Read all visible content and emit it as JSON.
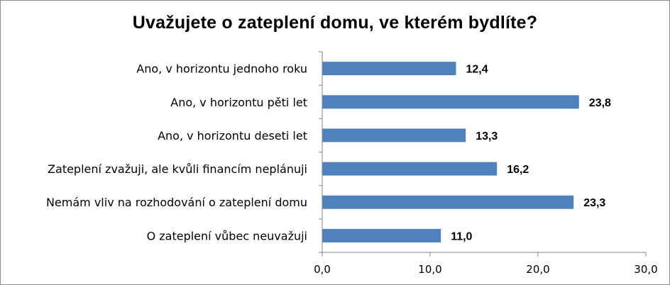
{
  "chart_data": {
    "type": "bar",
    "orientation": "horizontal",
    "title": "Uvažujete o zateplení domu, ve kterém bydlíte?",
    "categories": [
      "Ano, v horizontu jednoho roku",
      "Ano, v horizontu pěti let",
      "Ano, v horizontu deseti let",
      "Zateplení zvažuji, ale kvůli financím neplánuji",
      "Nemám vliv na rozhodování o zateplení domu",
      "O zateplení vůbec neuvažuji"
    ],
    "values": [
      12.4,
      23.8,
      13.3,
      16.2,
      23.3,
      11.0
    ],
    "value_labels": [
      "12,4",
      "23,8",
      "13,3",
      "16,2",
      "23,3",
      "11,0"
    ],
    "xlim": [
      0,
      30
    ],
    "x_ticks": [
      0,
      10,
      20,
      30
    ],
    "x_tick_labels": [
      "0,0",
      "10,0",
      "20,0",
      "30,0"
    ],
    "bar_color": "#4f81bd",
    "grid": false,
    "legend": "none"
  }
}
